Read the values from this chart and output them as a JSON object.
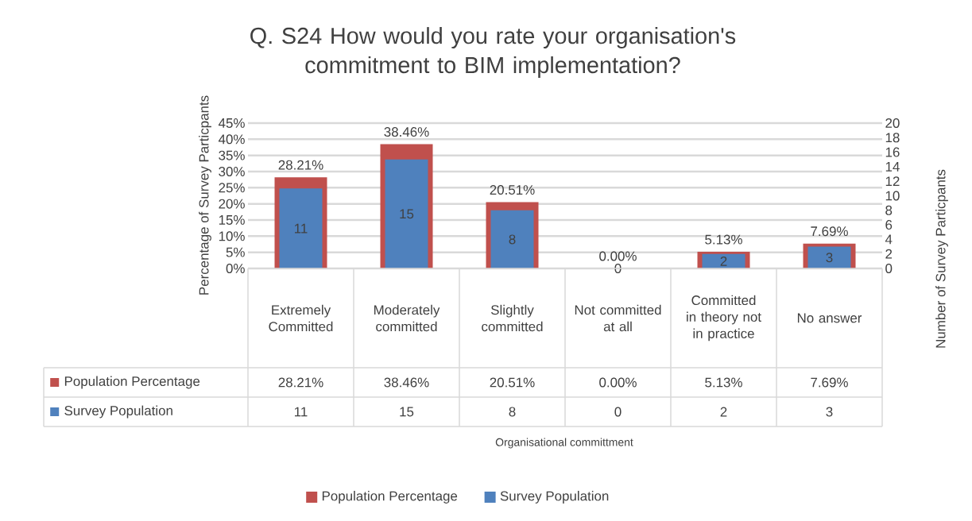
{
  "chart_data": {
    "type": "bar",
    "title": "Q. S24 How would you rate your organisation's commitment to BIM implementation?",
    "annotations": [
      "Organisational committment"
    ],
    "ylabel": "Percentage of Survey Particpants",
    "y2label": "Number of Survey Particpants",
    "categories": [
      "Extremely Committed",
      "Moderately committed",
      "Slightly committed",
      "Not committed at all",
      "Committed in theory not in practice",
      "No answer"
    ],
    "series": [
      {
        "name": "Population Percentage",
        "color": "#c0504d",
        "values": [
          28.21,
          38.46,
          20.51,
          0,
          5.13,
          7.69
        ],
        "value_labels": [
          "28.21%",
          "38.46%",
          "20.51%",
          "0.00%",
          "5.13%",
          "7.69%"
        ]
      },
      {
        "name": "Survey Population",
        "color": "#4f81bd",
        "axis": "y2",
        "values": [
          11,
          15,
          8,
          0,
          2,
          3
        ],
        "value_labels": [
          "11",
          "15",
          "8",
          "0",
          "2",
          "3"
        ]
      }
    ],
    "ylim": [
      0,
      45
    ],
    "yticks": [
      {
        "value": 0,
        "label": "0%"
      },
      {
        "value": 5,
        "label": "5%"
      },
      {
        "value": 10,
        "label": "10%"
      },
      {
        "value": 15,
        "label": "15%"
      },
      {
        "value": 20,
        "label": "20%"
      },
      {
        "value": 25,
        "label": "25%"
      },
      {
        "value": 30,
        "label": "30%"
      },
      {
        "value": 35,
        "label": "35%"
      },
      {
        "value": 40,
        "label": "40%"
      },
      {
        "value": 45,
        "label": "45%"
      }
    ],
    "y2lim": [
      0,
      20
    ],
    "y2ticks": [
      0,
      2,
      4,
      6,
      8,
      10,
      12,
      14,
      16,
      18,
      20
    ],
    "grid": "y",
    "legend": "bottom"
  }
}
